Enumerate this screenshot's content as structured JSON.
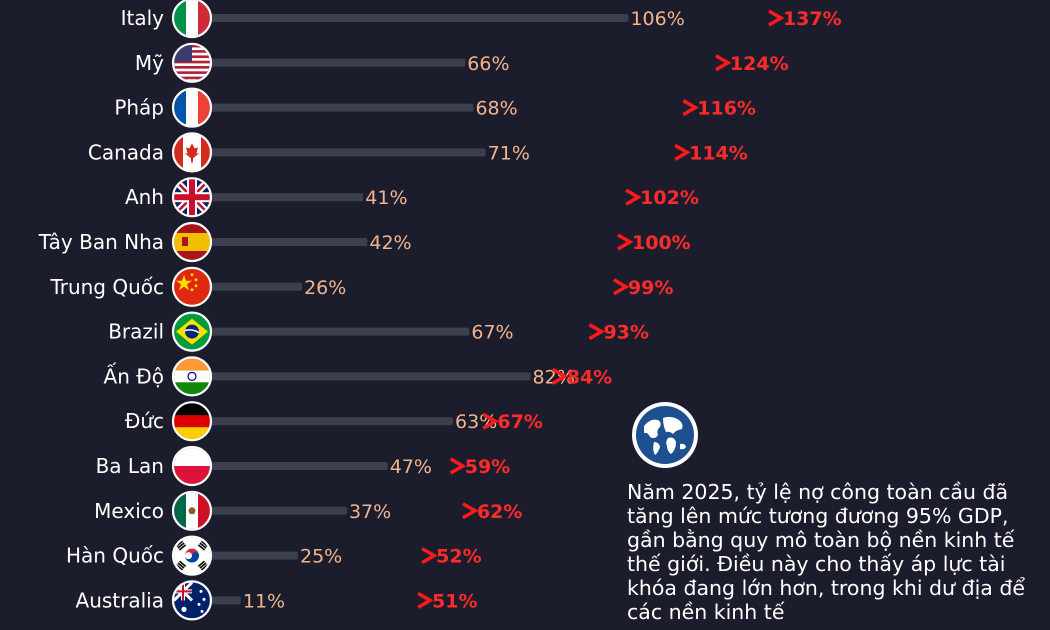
{
  "chart_data": {
    "type": "bar",
    "title": "",
    "xlabel": "",
    "ylabel": "",
    "categories": [
      "Italy",
      "Mỹ",
      "Pháp",
      "Canada",
      "Anh",
      "Tây Ban Nha",
      "Trung Quốc",
      "Brazil",
      "Ấn Độ",
      "Đức",
      "Ba Lan",
      "Mexico",
      "Hàn Quốc",
      "Australia"
    ],
    "flag_icons": [
      "italy-flag-icon",
      "usa-flag-icon",
      "france-flag-icon",
      "canada-flag-icon",
      "uk-flag-icon",
      "spain-flag-icon",
      "china-flag-icon",
      "brazil-flag-icon",
      "india-flag-icon",
      "germany-flag-icon",
      "poland-flag-icon",
      "mexico-flag-icon",
      "south-korea-flag-icon",
      "australia-flag-icon"
    ],
    "series": [
      {
        "values": [
          106,
          66,
          68,
          71,
          41,
          42,
          26,
          67,
          82,
          63,
          47,
          37,
          25,
          11
        ]
      },
      {
        "values": [
          137,
          124,
          116,
          114,
          102,
          100,
          99,
          93,
          84,
          67,
          59,
          62,
          52,
          51
        ]
      }
    ],
    "start_labels": [
      "106%",
      "66%",
      "68%",
      "71%",
      "41%",
      "42%",
      "26%",
      "67%",
      "82%",
      "63%",
      "47%",
      "37%",
      "25%",
      "11%"
    ],
    "end_labels": [
      "137%",
      "124%",
      "116%",
      "114%",
      "102%",
      "100%",
      "99%",
      "93%",
      "84%",
      "67%",
      "59%",
      "62%",
      "52%",
      "51%"
    ],
    "colors": {
      "bar": "#3c3f4d",
      "arrow": "#ff2a2a",
      "start_text": "#f2b48e",
      "end_text": "#ff2a2a",
      "background": "#1b1d2c"
    }
  },
  "sidebar": {
    "icon": "globe-icon",
    "note": "Năm 2025, tỷ lệ nợ công toàn cầu đã tăng lên mức tương đương 95% GDP, gần bằng quy mô toàn bộ nền kinh tế thế giới. Điều này cho thấy áp lực tài khóa đang lớn hơn, trong khi dư địa để các nền kinh tế"
  }
}
